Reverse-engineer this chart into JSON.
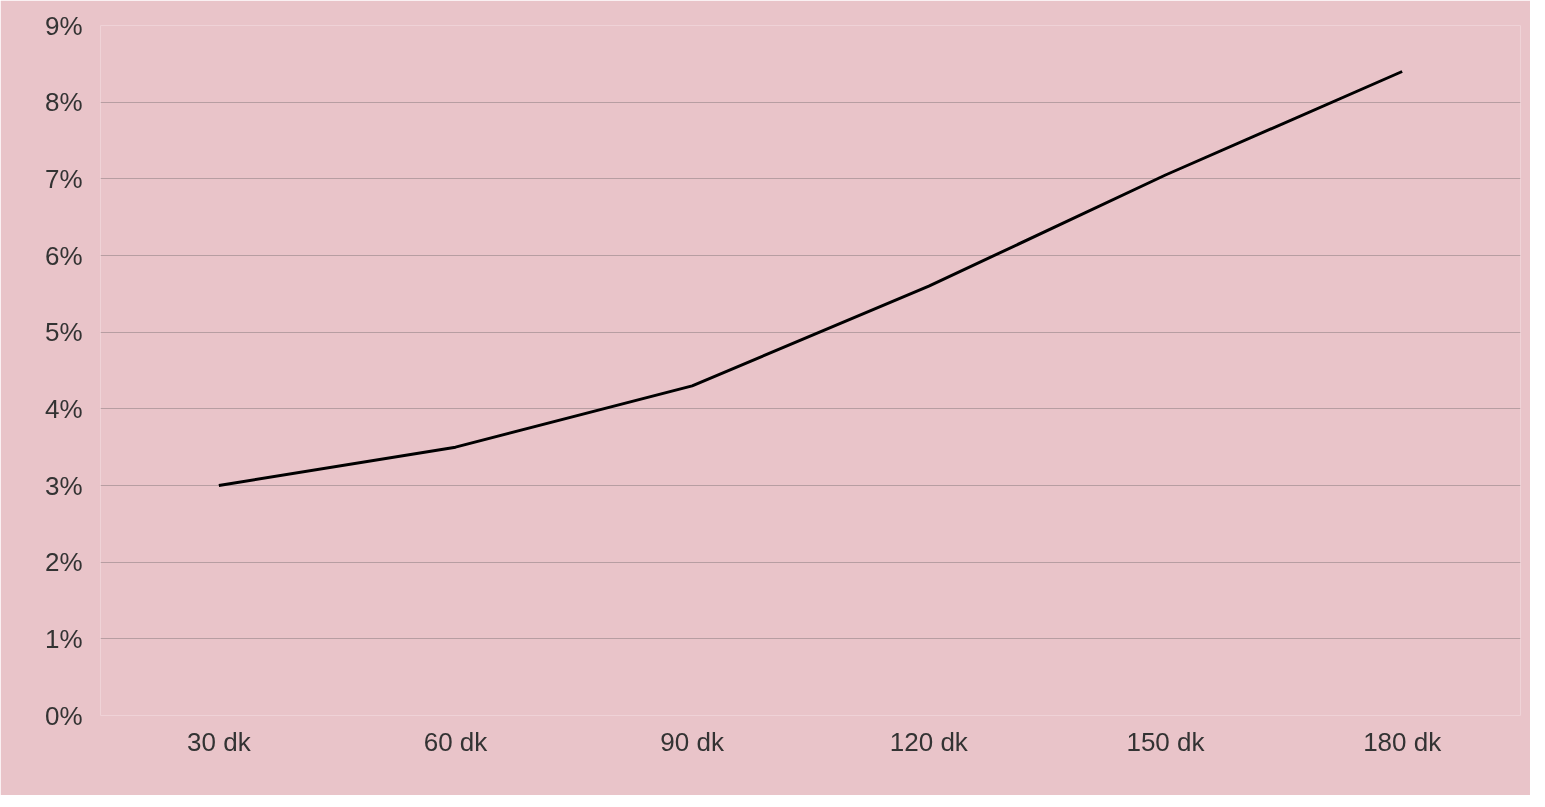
{
  "chart_data": {
    "type": "line",
    "categories": [
      "30 dk",
      "60 dk",
      "90 dk",
      "120 dk",
      "150 dk",
      "180 dk"
    ],
    "series": [
      {
        "color": "#000000",
        "values": [
          3.0,
          3.5,
          4.3,
          5.6,
          7.05,
          8.4
        ]
      }
    ],
    "ylim": [
      0,
      9
    ],
    "yticks": [
      {
        "value": 0,
        "label": "0%"
      },
      {
        "value": 1,
        "label": "1%"
      },
      {
        "value": 2,
        "label": "2%"
      },
      {
        "value": 3,
        "label": "3%"
      },
      {
        "value": 4,
        "label": "4%"
      },
      {
        "value": 5,
        "label": "5%"
      },
      {
        "value": 6,
        "label": "6%"
      },
      {
        "value": 7,
        "label": "7%"
      },
      {
        "value": 8,
        "label": "8%"
      },
      {
        "value": 9,
        "label": "9%"
      }
    ],
    "grid": "y",
    "marker": "none",
    "line_style": "solid"
  }
}
